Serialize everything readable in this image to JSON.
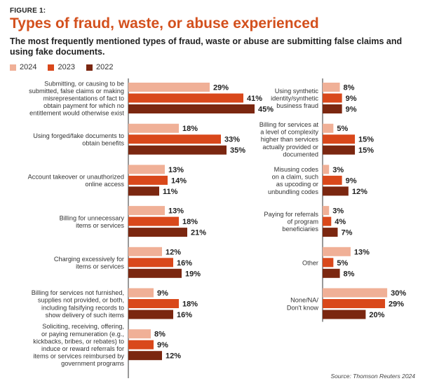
{
  "figure_label": "FIGURE 1:",
  "title": "Types of fraud, waste, or abuse experienced",
  "subtitle": "The most frequently mentioned types of fraud, waste or abuse are submitting false claims and using fake documents.",
  "source": "Source: Thomson Reuters 2024",
  "colors": {
    "accent": "#d3501d",
    "2024": "#f0b097",
    "2023": "#d9481b",
    "2022": "#7b2710"
  },
  "chart_data": {
    "type": "bar",
    "orientation": "horizontal",
    "unit": "%",
    "legend": [
      "2024",
      "2023",
      "2022"
    ],
    "legend_position": "top-left",
    "grid": false,
    "panels": [
      {
        "categories": [
          [
            "Submitting, or causing to be",
            "submitted, false claims or making",
            "misrepresentations of fact to",
            "obtain payment for which no",
            "entitlement would otherwise exist"
          ],
          [
            "Using forged/fake documents to",
            "obtain benefits"
          ],
          [
            "Account takeover or unauthorized",
            "online access"
          ],
          [
            "Billing for unnecessary",
            "items or services"
          ],
          [
            "Charging excessively for",
            "items or services"
          ],
          [
            "Billing for services not furnished,",
            "supplies not provided, or both,",
            "including falsifying records to",
            "show delivery of such items"
          ],
          [
            "Soliciting, receiving, offering,",
            "or paying remuneration (e.g.,",
            "kickbacks, bribes, or rebates) to",
            "induce or reward referrals for",
            "items or services reimbursed by",
            "government programs"
          ]
        ],
        "series": [
          {
            "name": "2024",
            "values": [
              29,
              18,
              13,
              13,
              12,
              9,
              8
            ]
          },
          {
            "name": "2023",
            "values": [
              41,
              33,
              14,
              18,
              16,
              18,
              9
            ]
          },
          {
            "name": "2022",
            "values": [
              45,
              35,
              11,
              21,
              19,
              16,
              12
            ]
          }
        ]
      },
      {
        "categories": [
          [
            "Using synthetic",
            "identity/synthetic",
            "business fraud"
          ],
          [
            "Billing for services at",
            "a level of complexity",
            "higher than services",
            "actually provided or",
            "documented"
          ],
          [
            "Misusing codes",
            "on a claim, such",
            "as upcoding or",
            "unbundling codes"
          ],
          [
            "Paying for referrals",
            "of program",
            "beneficiaries"
          ],
          [
            "Other"
          ],
          [
            "None/NA/",
            "Don't know"
          ]
        ],
        "series": [
          {
            "name": "2024",
            "values": [
              8,
              5,
              3,
              3,
              13,
              30
            ]
          },
          {
            "name": "2023",
            "values": [
              9,
              15,
              9,
              4,
              5,
              29
            ]
          },
          {
            "name": "2022",
            "values": [
              9,
              15,
              12,
              7,
              8,
              20
            ]
          }
        ]
      }
    ]
  }
}
